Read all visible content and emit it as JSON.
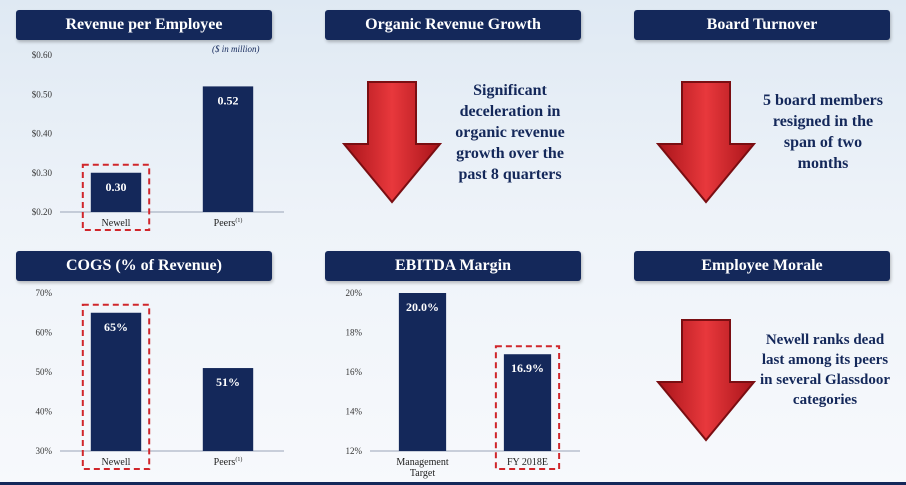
{
  "panels": {
    "revenue": {
      "title": "Revenue per Employee",
      "units": "($ in million)"
    },
    "organic": {
      "title": "Organic Revenue Growth",
      "note": "Significant deceleration in organic revenue growth over the past 8 quarters"
    },
    "board": {
      "title": "Board Turnover",
      "note": "5 board members resigned in the span of two months"
    },
    "cogs": {
      "title": "COGS (% of Revenue)"
    },
    "ebitda": {
      "title": "EBITDA Margin"
    },
    "morale": {
      "title": "Employee Morale",
      "note": "Newell ranks dead last among its peers in several Glassdoor categories"
    }
  },
  "colors": {
    "bar": "#14285a",
    "highlight": "#d0262b",
    "arrow": "#d0262b"
  },
  "chart_data": [
    {
      "id": "revenue",
      "type": "bar",
      "categories": [
        "Newell",
        "Peers(1)"
      ],
      "category_labels": [
        {
          "main": "Newell",
          "sup": ""
        },
        {
          "main": "Peers",
          "sup": "(1)"
        }
      ],
      "values": [
        0.3,
        0.52
      ],
      "value_labels": [
        "0.30",
        "0.52"
      ],
      "ylim": [
        0.2,
        0.6
      ],
      "yticks": [
        0.2,
        0.3,
        0.4,
        0.5,
        0.6
      ],
      "ytick_labels": [
        "$0.20",
        "$0.30",
        "$0.40",
        "$0.50",
        "$0.60"
      ],
      "highlight_index": 0
    },
    {
      "id": "cogs",
      "type": "bar",
      "categories": [
        "Newell",
        "Peers(1)"
      ],
      "category_labels": [
        {
          "main": "Newell",
          "sup": ""
        },
        {
          "main": "Peers",
          "sup": "(1)"
        }
      ],
      "values": [
        65,
        51
      ],
      "value_labels": [
        "65%",
        "51%"
      ],
      "ylim": [
        30,
        70
      ],
      "yticks": [
        30,
        40,
        50,
        60,
        70
      ],
      "ytick_labels": [
        "30%",
        "40%",
        "50%",
        "60%",
        "70%"
      ],
      "highlight_index": 0
    },
    {
      "id": "ebitda",
      "type": "bar",
      "categories": [
        "Management Target",
        "FY 2018E"
      ],
      "category_labels": [
        {
          "main": "Management Target",
          "sup": ""
        },
        {
          "main": "FY 2018E",
          "sup": ""
        }
      ],
      "values": [
        20.0,
        16.9
      ],
      "value_labels": [
        "20.0%",
        "16.9%"
      ],
      "ylim": [
        12,
        20
      ],
      "yticks": [
        12,
        14,
        16,
        18,
        20
      ],
      "ytick_labels": [
        "12%",
        "14%",
        "16%",
        "18%",
        "20%"
      ],
      "highlight_index": 1
    }
  ]
}
